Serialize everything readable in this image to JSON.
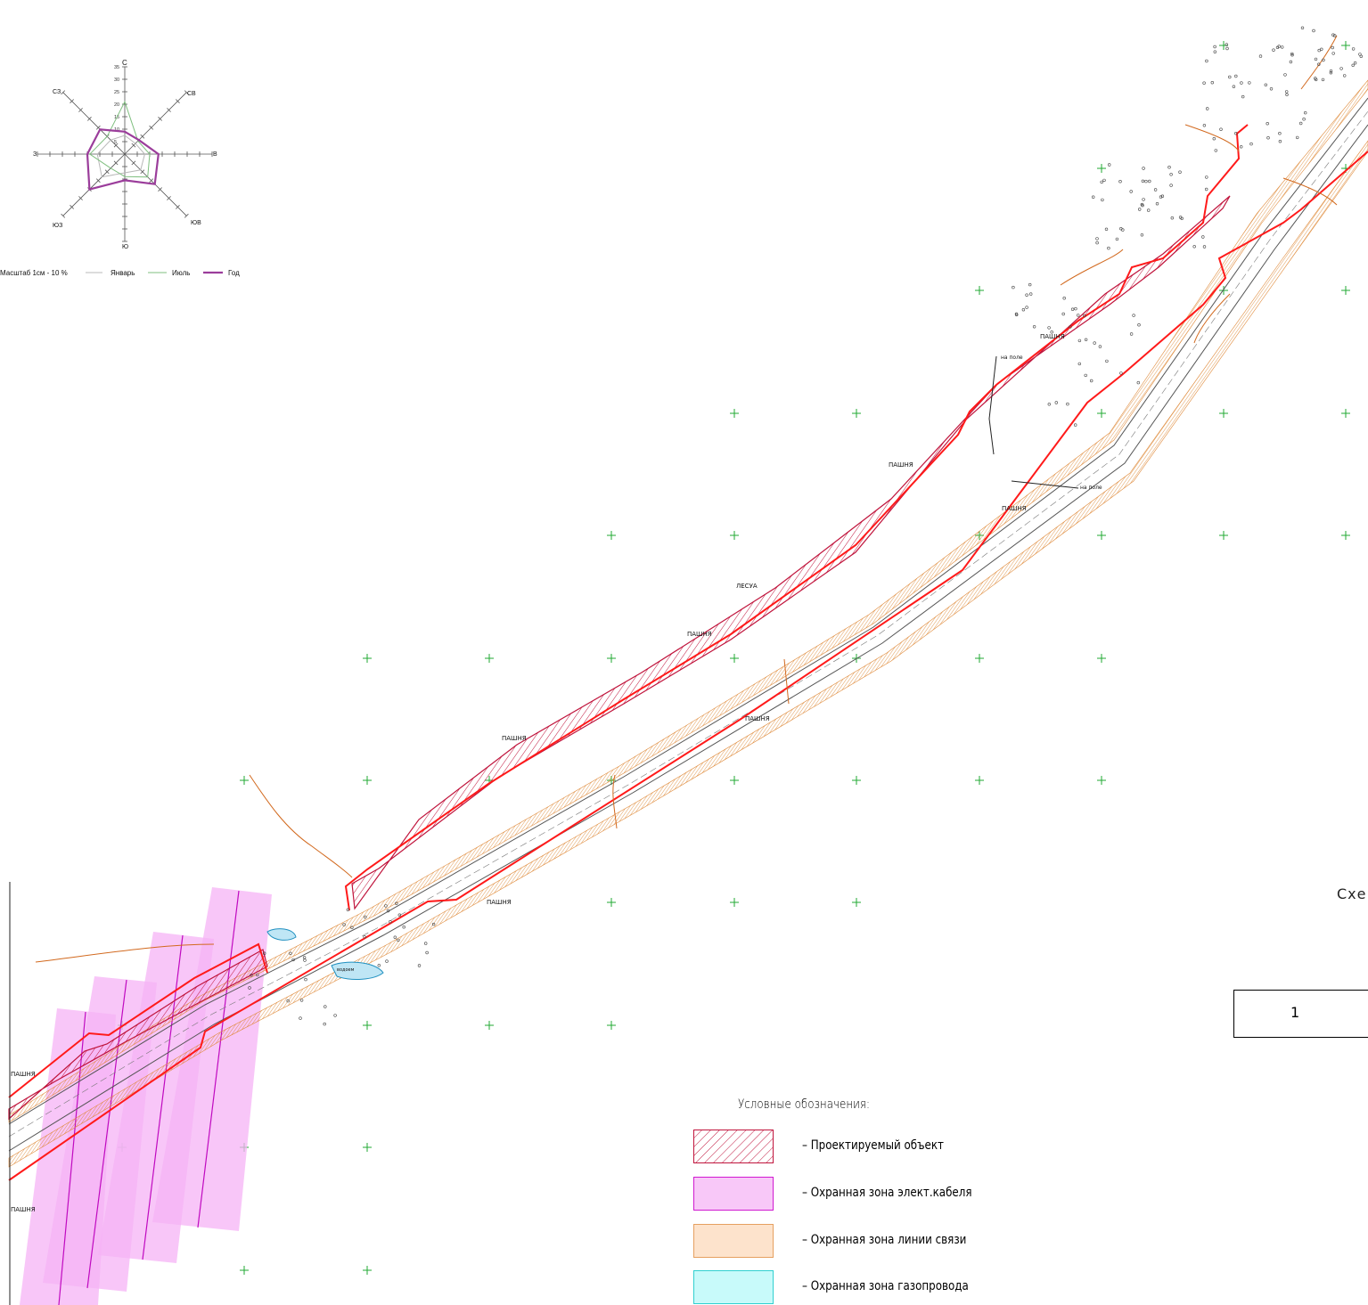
{
  "wind_rose": {
    "directions": [
      "С",
      "СВ",
      "В",
      "ЮВ",
      "Ю",
      "ЮЗ",
      "З",
      "СЗ"
    ],
    "ticks": [
      "35",
      "30",
      "25",
      "20",
      "15",
      "10",
      "5"
    ],
    "legend": {
      "scale": "Масштаб 1см - 10 %",
      "january": "Январь",
      "july": "Июль",
      "year": "Год"
    },
    "colors": {
      "january": "#b8b8b8",
      "july": "#7fbf7f",
      "year": "#9b3d9b"
    }
  },
  "map_labels": {
    "pashnya": [
      "ПАШНЯ",
      "ПАШНЯ",
      "ПАШНЯ",
      "ПАШНЯ",
      "ПАШНЯ",
      "ПАШНЯ",
      "ПАШНЯ",
      "ПАШНЯ",
      "ПАШНЯ"
    ],
    "forest": "ЛЕСУА",
    "to_field_1": "на поле",
    "to_field_2": "на поле",
    "pond": "водоем"
  },
  "scheme_label": "Схе",
  "sheet_number": "1",
  "legend": {
    "title": "Условные обозначения:",
    "items": [
      {
        "label": "– Проектируемый объект",
        "fill": "#f4c6d2",
        "stroke": "#c0143c"
      },
      {
        "label": "– Охранная зона элект.кабеля",
        "fill": "#f8c8f8",
        "stroke": "#d01ad0"
      },
      {
        "label": "– Охранная зона линии связи",
        "fill": "#fde3cc",
        "stroke": "#e6a060"
      },
      {
        "label": "– Охранная зона газопровода",
        "fill": "#c8fafa",
        "stroke": "#30d0d0"
      }
    ]
  },
  "colors": {
    "boundary": "#ff1a1a",
    "project_hatch": "#c0143c",
    "comm_zone": "#e8a868",
    "cable_zone": "#f2a8f2",
    "grid_cross": "#22aa33",
    "contour": "#d2691e"
  }
}
